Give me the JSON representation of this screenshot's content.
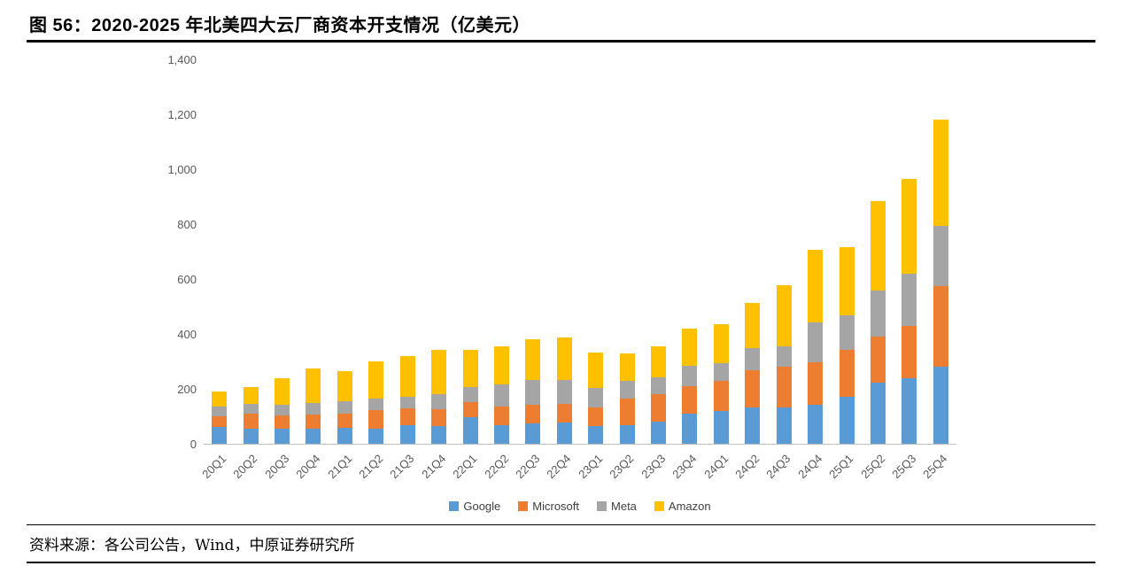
{
  "title": "图 56：2020-2025 年北美四大云厂商资本开支情况（亿美元）",
  "source": "资料来源：各公司公告，Wind，中原证券研究所",
  "chart_data": {
    "type": "bar",
    "stacked": true,
    "title": "2020-2025 年北美四大云厂商资本开支情况（亿美元）",
    "xlabel": "",
    "ylabel": "",
    "ylim": [
      0,
      1400
    ],
    "ytick_step": 200,
    "ytick_labels": [
      "0",
      "200",
      "400",
      "600",
      "800",
      "1,000",
      "1,200",
      "1,400"
    ],
    "grid": false,
    "legend_position": "bottom",
    "categories": [
      "20Q1",
      "20Q2",
      "20Q3",
      "20Q4",
      "21Q1",
      "21Q2",
      "21Q3",
      "21Q4",
      "22Q1",
      "22Q2",
      "22Q3",
      "22Q4",
      "23Q1",
      "23Q2",
      "23Q3",
      "23Q4",
      "24Q1",
      "24Q2",
      "24Q3",
      "24Q4",
      "25Q1",
      "25Q2",
      "25Q3",
      "25Q4"
    ],
    "series": [
      {
        "name": "Google",
        "color": "#5B9BD5",
        "values": [
          60,
          54,
          54,
          55,
          59,
          55,
          68,
          64,
          98,
          68,
          73,
          76,
          63,
          69,
          81,
          110,
          120,
          132,
          131,
          143,
          172,
          224,
          240,
          280
        ]
      },
      {
        "name": "Microsoft",
        "color": "#ED7D31",
        "values": [
          40,
          56,
          50,
          50,
          51,
          67,
          60,
          62,
          55,
          67,
          68,
          70,
          70,
          95,
          100,
          100,
          110,
          135,
          150,
          155,
          170,
          165,
          190,
          295
        ]
      },
      {
        "name": "Meta",
        "color": "#A5A5A5",
        "values": [
          37,
          35,
          39,
          45,
          45,
          43,
          44,
          55,
          55,
          80,
          90,
          85,
          70,
          65,
          60,
          75,
          65,
          80,
          75,
          145,
          125,
          170,
          190,
          220
        ]
      },
      {
        "name": "Amazon",
        "color": "#FFC000",
        "values": [
          53,
          60,
          97,
          125,
          110,
          135,
          148,
          160,
          135,
          140,
          150,
          155,
          130,
          100,
          115,
          135,
          140,
          165,
          220,
          265,
          250,
          325,
          345,
          385
        ]
      }
    ]
  }
}
